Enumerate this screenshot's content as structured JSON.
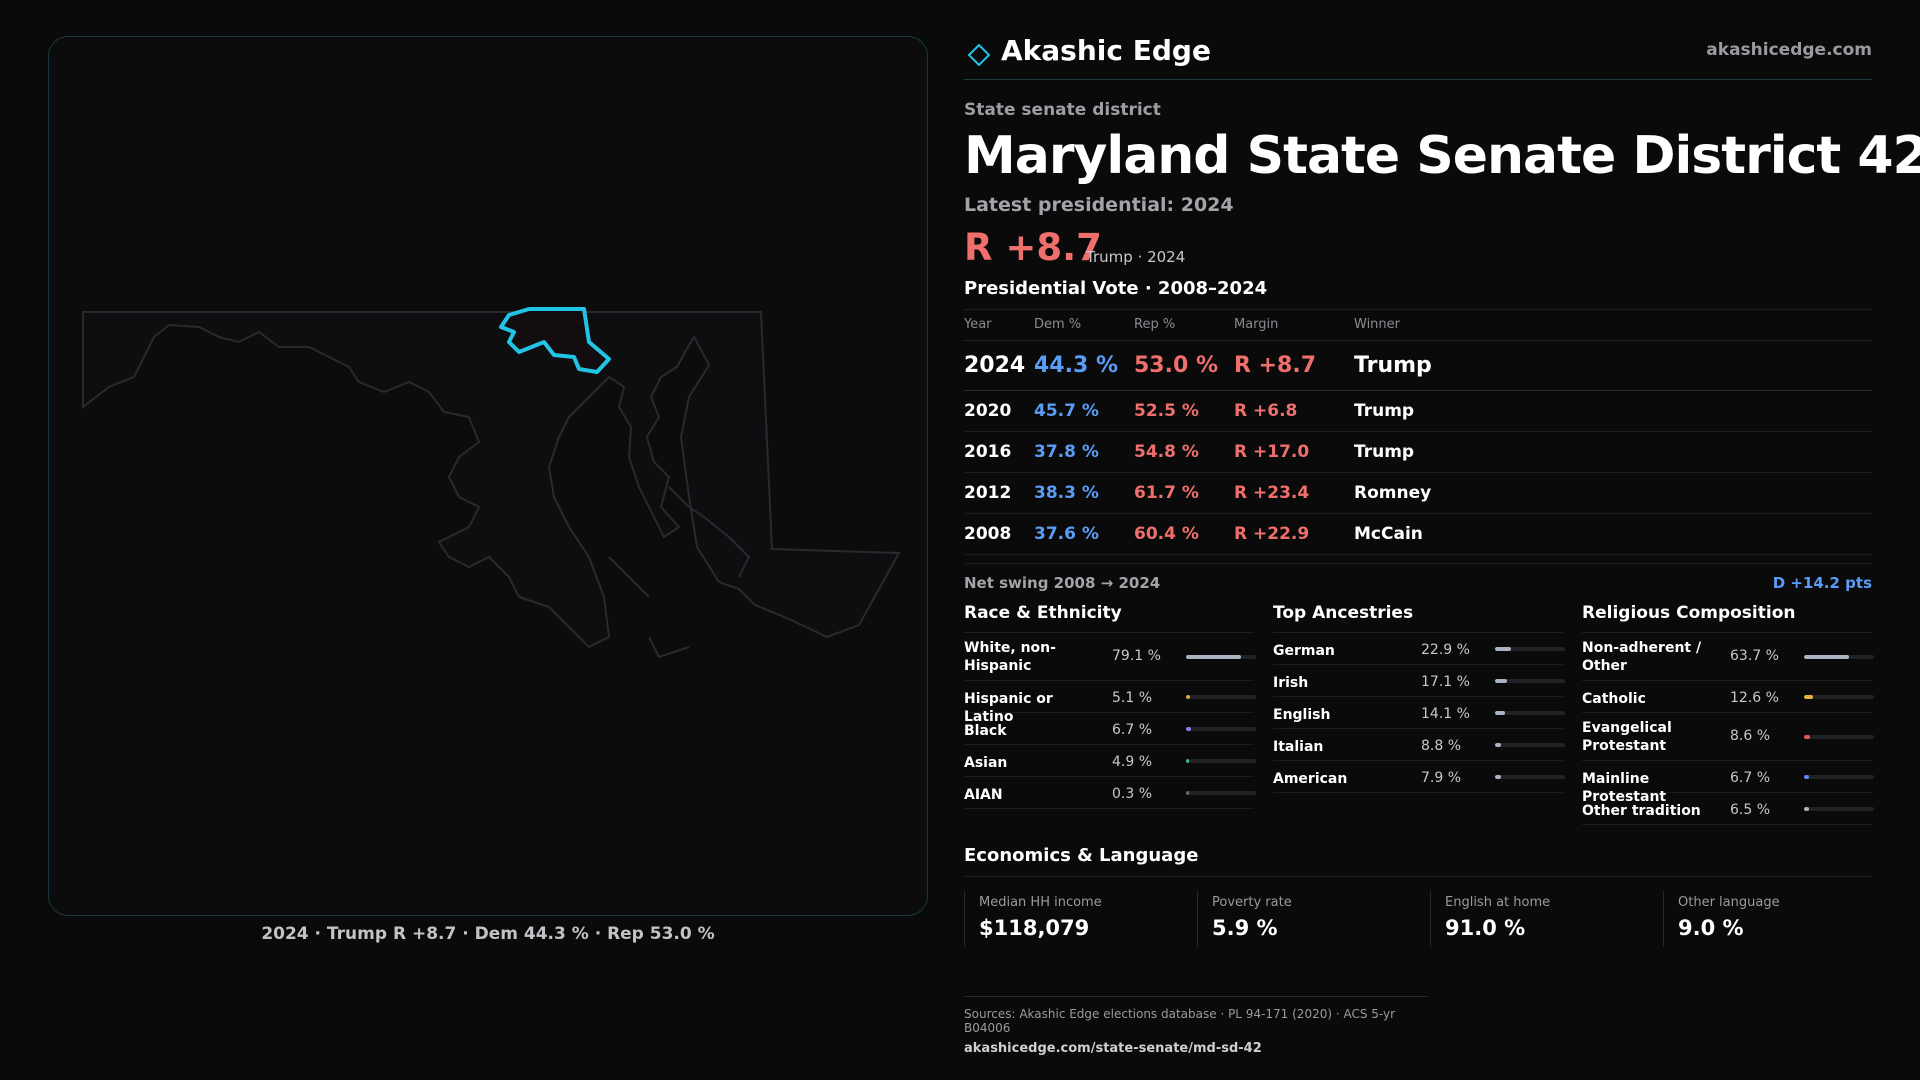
{
  "brand": {
    "name": "Akashic Edge",
    "url": "akashicedge.com"
  },
  "district": {
    "kicker": "State senate district",
    "title": "Maryland State Senate District 42",
    "latest_label": "Latest presidential: 2024",
    "margin": "R +8.7",
    "margin_sub": "Trump · 2024"
  },
  "map": {
    "caption": "2024 · Trump R +8.7 · Dem 44.3 % · Rep 53.0 %",
    "highlight_color": "#22c4e6"
  },
  "votes": {
    "title": "Presidential Vote · 2008–2024",
    "headers": {
      "year": "Year",
      "dem": "Dem %",
      "rep": "Rep %",
      "margin": "Margin",
      "winner": "Winner"
    },
    "rows": [
      {
        "year": "2024",
        "dem": "44.3 %",
        "rep": "53.0 %",
        "margin": "R +8.7",
        "winner": "Trump"
      },
      {
        "year": "2020",
        "dem": "45.7 %",
        "rep": "52.5 %",
        "margin": "R +6.8",
        "winner": "Trump"
      },
      {
        "year": "2016",
        "dem": "37.8 %",
        "rep": "54.8 %",
        "margin": "R +17.0",
        "winner": "Trump"
      },
      {
        "year": "2012",
        "dem": "38.3 %",
        "rep": "61.7 %",
        "margin": "R +23.4",
        "winner": "Romney"
      },
      {
        "year": "2008",
        "dem": "37.6 %",
        "rep": "60.4 %",
        "margin": "R +22.9",
        "winner": "McCain"
      }
    ]
  },
  "swing": {
    "label": "Net swing 2008 → 2024",
    "value": "D +14.2 pts"
  },
  "race": {
    "title": "Race & Ethnicity",
    "items": [
      {
        "label": "White, non-Hispanic",
        "value": "79.1 %",
        "pct": 79.1,
        "color": "#a9b3c2"
      },
      {
        "label": "Hispanic or Latino",
        "value": "5.1 %",
        "pct": 5.1,
        "color": "#e6a23c"
      },
      {
        "label": "Black",
        "value": "6.7 %",
        "pct": 6.7,
        "color": "#8b7ee6"
      },
      {
        "label": "Asian",
        "value": "4.9 %",
        "pct": 4.9,
        "color": "#34c38f"
      },
      {
        "label": "AIAN",
        "value": "0.3 %",
        "pct": 0.3,
        "color": "#6b6b70"
      }
    ]
  },
  "ancestry": {
    "title": "Top Ancestries",
    "items": [
      {
        "label": "German",
        "value": "22.9 %",
        "pct": 22.9,
        "color": "#a9b3c2"
      },
      {
        "label": "Irish",
        "value": "17.1 %",
        "pct": 17.1,
        "color": "#a9b3c2"
      },
      {
        "label": "English",
        "value": "14.1 %",
        "pct": 14.1,
        "color": "#a9b3c2"
      },
      {
        "label": "Italian",
        "value": "8.8 %",
        "pct": 8.8,
        "color": "#a9b3c2"
      },
      {
        "label": "American",
        "value": "7.9 %",
        "pct": 7.9,
        "color": "#a9b3c2"
      }
    ]
  },
  "religion": {
    "title": "Religious Composition",
    "items": [
      {
        "label": "Non-adherent / Other",
        "value": "63.7 %",
        "pct": 63.7,
        "color": "#a9b3c2"
      },
      {
        "label": "Catholic",
        "value": "12.6 %",
        "pct": 12.6,
        "color": "#e6b23c"
      },
      {
        "label": "Evangelical Protestant",
        "value": "8.6 %",
        "pct": 8.6,
        "color": "#e05a5a"
      },
      {
        "label": "Mainline Protestant",
        "value": "6.7 %",
        "pct": 6.7,
        "color": "#5b8bf6"
      },
      {
        "label": "Other tradition",
        "value": "6.5 %",
        "pct": 6.5,
        "color": "#a9b3c2"
      }
    ]
  },
  "economics": {
    "title": "Economics & Language",
    "cards": [
      {
        "label": "Median HH income",
        "value": "$118,079"
      },
      {
        "label": "Poverty rate",
        "value": "5.9 %"
      },
      {
        "label": "English at home",
        "value": "91.0 %"
      },
      {
        "label": "Other language",
        "value": "9.0 %"
      }
    ]
  },
  "sources": {
    "text": "Sources: Akashic Edge elections database · PL 94-171 (2020) · ACS 5-yr B04006",
    "link": "akashicedge.com/state-senate/md-sd-42"
  }
}
